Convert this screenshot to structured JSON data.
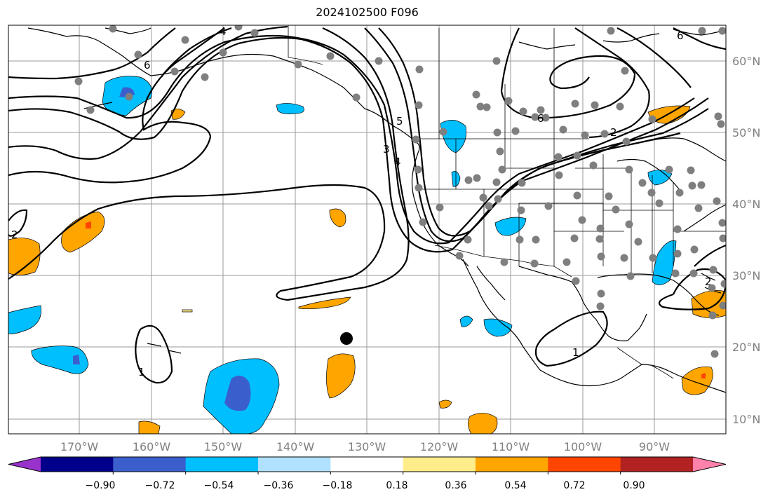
{
  "title": "2024102500 F096",
  "map": {
    "lon_labels": [
      "170°W",
      "160°W",
      "150°W",
      "140°W",
      "130°W",
      "120°W",
      "110°W",
      "100°W",
      "90°W"
    ],
    "lat_labels": [
      "60°N",
      "50°N",
      "40°N",
      "30°N",
      "20°N",
      "10°N"
    ],
    "contour_labels": [
      "4",
      "6",
      "5",
      "3",
      "4",
      "2",
      "6",
      "2",
      "1",
      "1",
      "2",
      "6"
    ],
    "marker": {
      "name": "black-dot",
      "lon": -133,
      "lat": 21
    }
  },
  "colorbar": {
    "colors": [
      "#9932cc",
      "#00008b",
      "#3a5fcd",
      "#00bfff",
      "#b0e2ff",
      "#ffffff",
      "#ffec8b",
      "#ffa500",
      "#ff4500",
      "#b22222",
      "#ff82ab"
    ],
    "tick_labels": [
      "−0.90",
      "−0.72",
      "−0.54",
      "−0.36",
      "−0.18",
      "0.18",
      "0.36",
      "0.54",
      "0.72",
      "0.90"
    ]
  }
}
